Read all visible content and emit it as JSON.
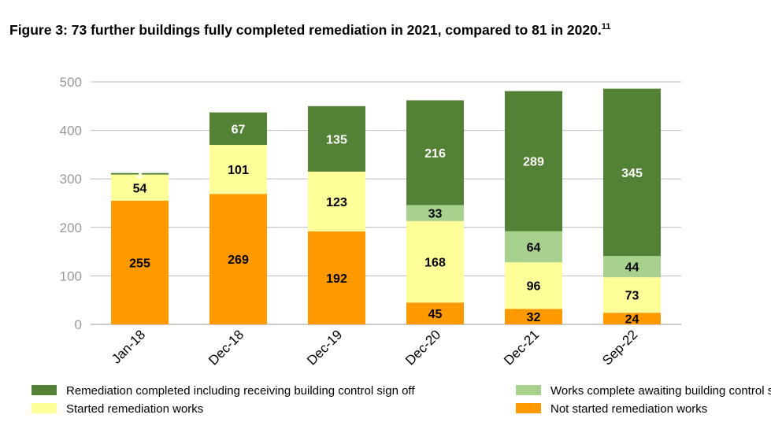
{
  "chart_data": {
    "type": "bar",
    "stacked": true,
    "title": "Figure 3: 73 further buildings fully completed remediation in 2021, compared to 81 in 2020.",
    "title_footnote": "11",
    "xlabel": "",
    "ylabel": "",
    "ylim": [
      0,
      500
    ],
    "yticks": [
      0,
      100,
      200,
      300,
      400,
      500
    ],
    "grid": true,
    "legend_position": "bottom",
    "categories": [
      "Jan-18",
      "Dec-18",
      "Dec-19",
      "Dec-20",
      "Dec-21",
      "Sep-22"
    ],
    "series": [
      {
        "name": "Not started remediation works",
        "color": "#FF9900",
        "label_color": "#000000",
        "values": [
          255,
          269,
          192,
          45,
          32,
          24
        ]
      },
      {
        "name": "Started remediation works",
        "color": "#FFFF99",
        "label_color": "#000000",
        "values": [
          54,
          101,
          123,
          168,
          96,
          73
        ]
      },
      {
        "name": "Works complete awaiting building control sign off",
        "color": "#A9D18E",
        "label_color": "#000000",
        "values": [
          0,
          0,
          0,
          33,
          64,
          44
        ]
      },
      {
        "name": "Remediation completed including receiving building control sign off",
        "color": "#538135",
        "label_color": "#FFFFFF",
        "values": [
          3,
          67,
          135,
          216,
          289,
          345
        ]
      }
    ],
    "legend_order": [
      3,
      1,
      2,
      0
    ]
  }
}
